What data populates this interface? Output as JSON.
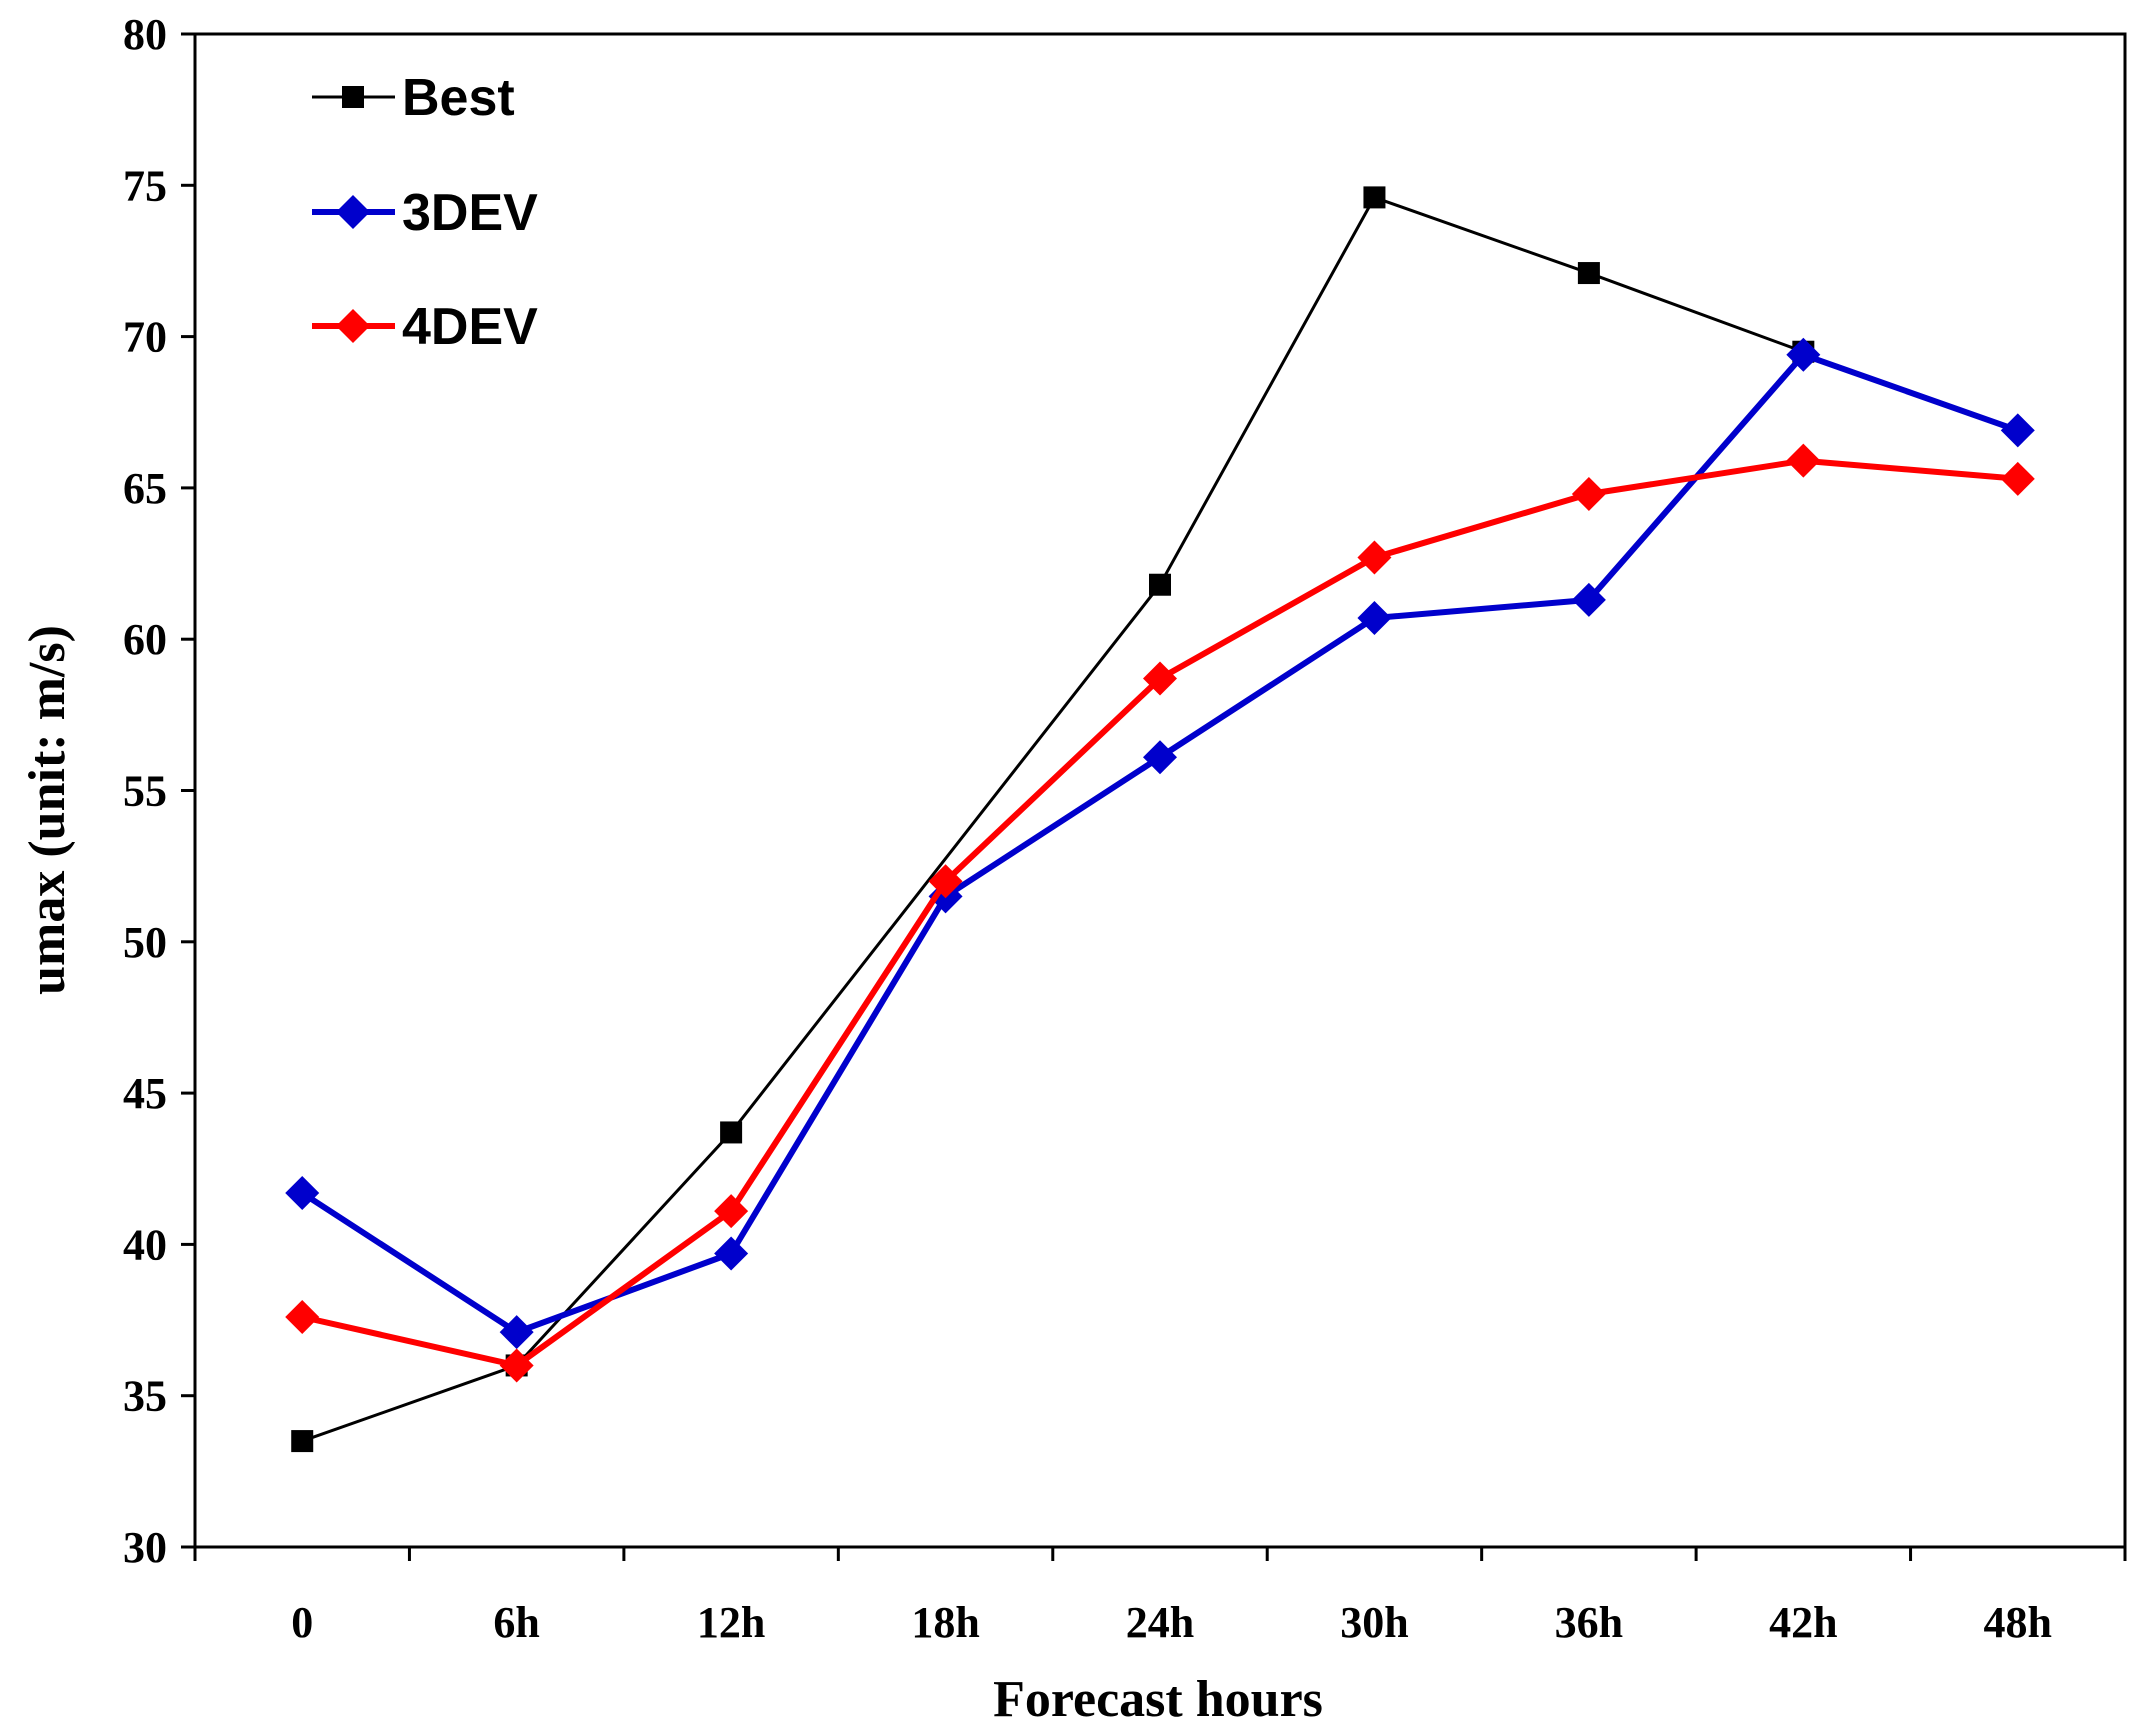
{
  "chart_data": {
    "type": "line",
    "title": "",
    "xlabel": "Forecast hours",
    "ylabel": "umax (unit: m/s)",
    "categories": [
      "0",
      "6h",
      "12h",
      "18h",
      "24h",
      "30h",
      "36h",
      "42h",
      "48h"
    ],
    "ylim": [
      30,
      80
    ],
    "yticks": [
      30,
      35,
      40,
      45,
      50,
      55,
      60,
      65,
      70,
      75,
      80
    ],
    "grid": false,
    "legend_position": "top-left",
    "series": [
      {
        "name": "Best",
        "color": "#000000",
        "marker": "square",
        "values": [
          33.5,
          36.0,
          43.7,
          null,
          61.8,
          74.6,
          72.1,
          69.5,
          null
        ]
      },
      {
        "name": "3DEV",
        "color": "#0000cc",
        "marker": "diamond",
        "values": [
          41.7,
          37.1,
          39.7,
          51.5,
          56.1,
          60.7,
          61.3,
          69.4,
          66.9
        ]
      },
      {
        "name": "4DEV",
        "color": "#ff0000",
        "marker": "diamond",
        "values": [
          37.6,
          36.0,
          41.1,
          52.0,
          58.7,
          62.7,
          64.8,
          65.9,
          65.3
        ]
      }
    ]
  }
}
